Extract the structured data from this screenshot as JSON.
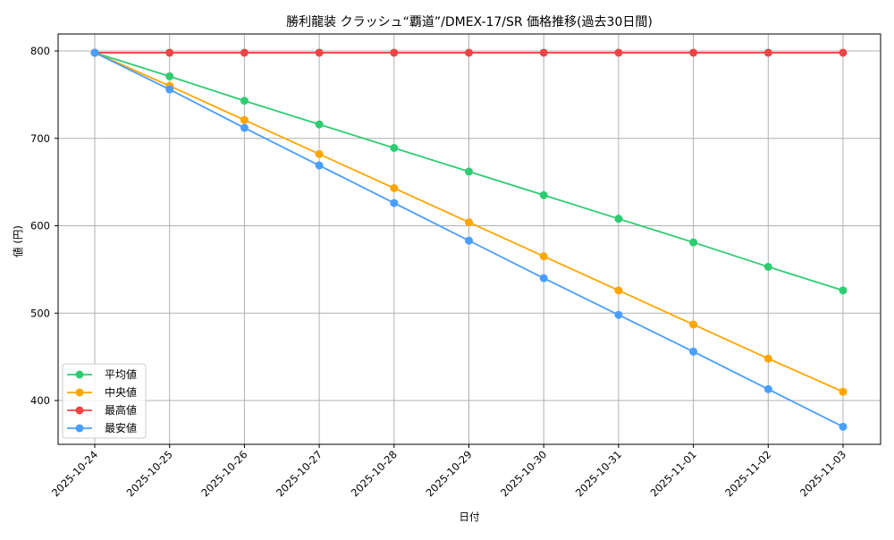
{
  "chart_data": {
    "type": "line",
    "title": "勝利龍装 クラッシュ“覇道”/DMEX-17/SR 価格推移(過去30日間)",
    "xlabel": "日付",
    "ylabel": "値 (円)",
    "categories": [
      "2025-10-24",
      "2025-10-25",
      "2025-10-26",
      "2025-10-27",
      "2025-10-28",
      "2025-10-29",
      "2025-10-30",
      "2025-10-31",
      "2025-11-01",
      "2025-11-02",
      "2025-11-03"
    ],
    "yticks": [
      400,
      500,
      600,
      700,
      800
    ],
    "ylim": [
      350,
      820
    ],
    "grid": true,
    "legend_position": "lower left",
    "series": [
      {
        "name": "平均値",
        "color": "#2ecc71",
        "values": [
          798,
          771,
          743,
          716,
          689,
          662,
          635,
          608,
          581,
          553,
          526
        ]
      },
      {
        "name": "中央値",
        "color": "#ffa500",
        "values": [
          798,
          760,
          721,
          682,
          643,
          604,
          565,
          526,
          487,
          448,
          410
        ]
      },
      {
        "name": "最高値",
        "color": "#ef4444",
        "values": [
          798,
          798,
          798,
          798,
          798,
          798,
          798,
          798,
          798,
          798,
          798
        ]
      },
      {
        "name": "最安値",
        "color": "#4a9eff",
        "values": [
          798,
          756,
          712,
          669,
          626,
          583,
          540,
          498,
          456,
          413,
          370
        ]
      }
    ]
  }
}
